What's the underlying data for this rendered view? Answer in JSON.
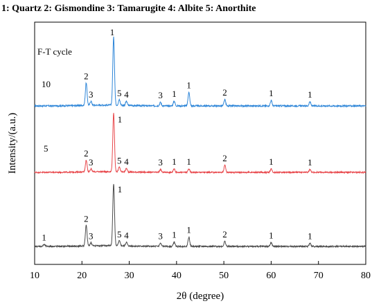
{
  "chart_data": {
    "type": "line",
    "title": "1: Quartz  2: Gismondine 3: Tamarugite 4: Albite 5: Anorthite",
    "xlabel": "2θ (degree)",
    "ylabel": "Intensity/(a.u.)",
    "xlim": [
      10,
      80
    ],
    "x_ticks": [
      10,
      20,
      30,
      40,
      50,
      60,
      70,
      80
    ],
    "y_ticks_shown": false,
    "grid": false,
    "annotation": "F-T cycle",
    "colors": {
      "10": "#2e86d8",
      "5": "#e8474b",
      "1": "#4a4a4a"
    },
    "series": [
      {
        "name": "10",
        "peaks": [
          {
            "x": 20.9,
            "height": 0.33,
            "label": "2"
          },
          {
            "x": 21.9,
            "height": 0.06,
            "label": "3"
          },
          {
            "x": 26.7,
            "height": 1.0,
            "label": "1"
          },
          {
            "x": 27.9,
            "height": 0.08,
            "label": "5"
          },
          {
            "x": 29.4,
            "height": 0.06,
            "label": "4"
          },
          {
            "x": 36.6,
            "height": 0.05,
            "label": "3"
          },
          {
            "x": 39.5,
            "height": 0.07,
            "label": "1"
          },
          {
            "x": 42.6,
            "height": 0.2,
            "label": "1"
          },
          {
            "x": 50.2,
            "height": 0.09,
            "label": "2"
          },
          {
            "x": 60.0,
            "height": 0.08,
            "label": "1"
          },
          {
            "x": 68.2,
            "height": 0.06,
            "label": "1"
          }
        ]
      },
      {
        "name": "5",
        "peaks": [
          {
            "x": 20.9,
            "height": 0.2,
            "label": "2"
          },
          {
            "x": 21.9,
            "height": 0.05,
            "label": "3"
          },
          {
            "x": 26.7,
            "height": 1.0,
            "label": "1"
          },
          {
            "x": 27.9,
            "height": 0.08,
            "label": "5"
          },
          {
            "x": 29.4,
            "height": 0.06,
            "label": "4"
          },
          {
            "x": 36.6,
            "height": 0.05,
            "label": "3"
          },
          {
            "x": 39.5,
            "height": 0.06,
            "label": "1"
          },
          {
            "x": 42.6,
            "height": 0.06,
            "label": "1"
          },
          {
            "x": 50.2,
            "height": 0.12,
            "label": "2"
          },
          {
            "x": 60.0,
            "height": 0.06,
            "label": "1"
          },
          {
            "x": 68.2,
            "height": 0.05,
            "label": "1"
          }
        ]
      },
      {
        "name": "1",
        "peaks": [
          {
            "x": 12.0,
            "height": 0.03,
            "label": "1"
          },
          {
            "x": 20.9,
            "height": 0.33,
            "label": "2"
          },
          {
            "x": 21.9,
            "height": 0.05,
            "label": "3"
          },
          {
            "x": 26.7,
            "height": 1.0,
            "label": "1"
          },
          {
            "x": 27.9,
            "height": 0.08,
            "label": "5"
          },
          {
            "x": 29.4,
            "height": 0.06,
            "label": "4"
          },
          {
            "x": 36.6,
            "height": 0.05,
            "label": "3"
          },
          {
            "x": 39.5,
            "height": 0.07,
            "label": "1"
          },
          {
            "x": 42.6,
            "height": 0.15,
            "label": "1"
          },
          {
            "x": 50.2,
            "height": 0.08,
            "label": "2"
          },
          {
            "x": 60.0,
            "height": 0.06,
            "label": "1"
          },
          {
            "x": 68.2,
            "height": 0.05,
            "label": "1"
          }
        ]
      }
    ]
  }
}
